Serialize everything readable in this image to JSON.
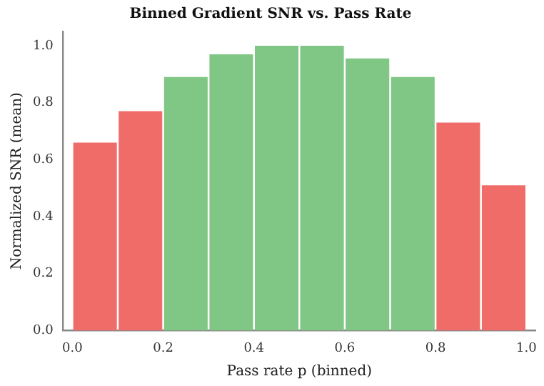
{
  "chart_data": {
    "type": "histogram",
    "title": "Binned Gradient SNR vs. Pass Rate",
    "xlabel": "Pass rate p (binned)",
    "ylabel": "Normalized SNR (mean)",
    "bins": [
      0,
      0.1,
      0.2,
      0.3,
      0.4,
      0.5,
      0.6,
      0.7,
      0.8,
      0.9,
      1.0
    ],
    "values": [
      0.66,
      0.77,
      0.89,
      0.97,
      1.0,
      1.0,
      0.955,
      0.89,
      0.73,
      0.51
    ],
    "colors": [
      "#f06c68",
      "#f06c68",
      "#80c684",
      "#80c684",
      "#80c684",
      "#80c684",
      "#80c684",
      "#80c684",
      "#f06c68",
      "#f06c68"
    ],
    "xlim": [
      -0.02,
      1.02
    ],
    "ylim": [
      0,
      1.05
    ],
    "xticks": [
      {
        "value": 0,
        "label": "0.0"
      },
      {
        "value": 0.2,
        "label": "0.2"
      },
      {
        "value": 0.4,
        "label": "0.4"
      },
      {
        "value": 0.6,
        "label": "0.6"
      },
      {
        "value": 0.8,
        "label": "0.8"
      },
      {
        "value": 1.0,
        "label": "1.0"
      }
    ],
    "yticks": [
      {
        "value": 0,
        "label": "0.0"
      },
      {
        "value": 0.2,
        "label": "0.2"
      },
      {
        "value": 0.4,
        "label": "0.4"
      },
      {
        "value": 0.6,
        "label": "0.6"
      },
      {
        "value": 0.8,
        "label": "0.8"
      },
      {
        "value": 1.0,
        "label": "1.0"
      }
    ],
    "grid": false,
    "legend": false
  }
}
